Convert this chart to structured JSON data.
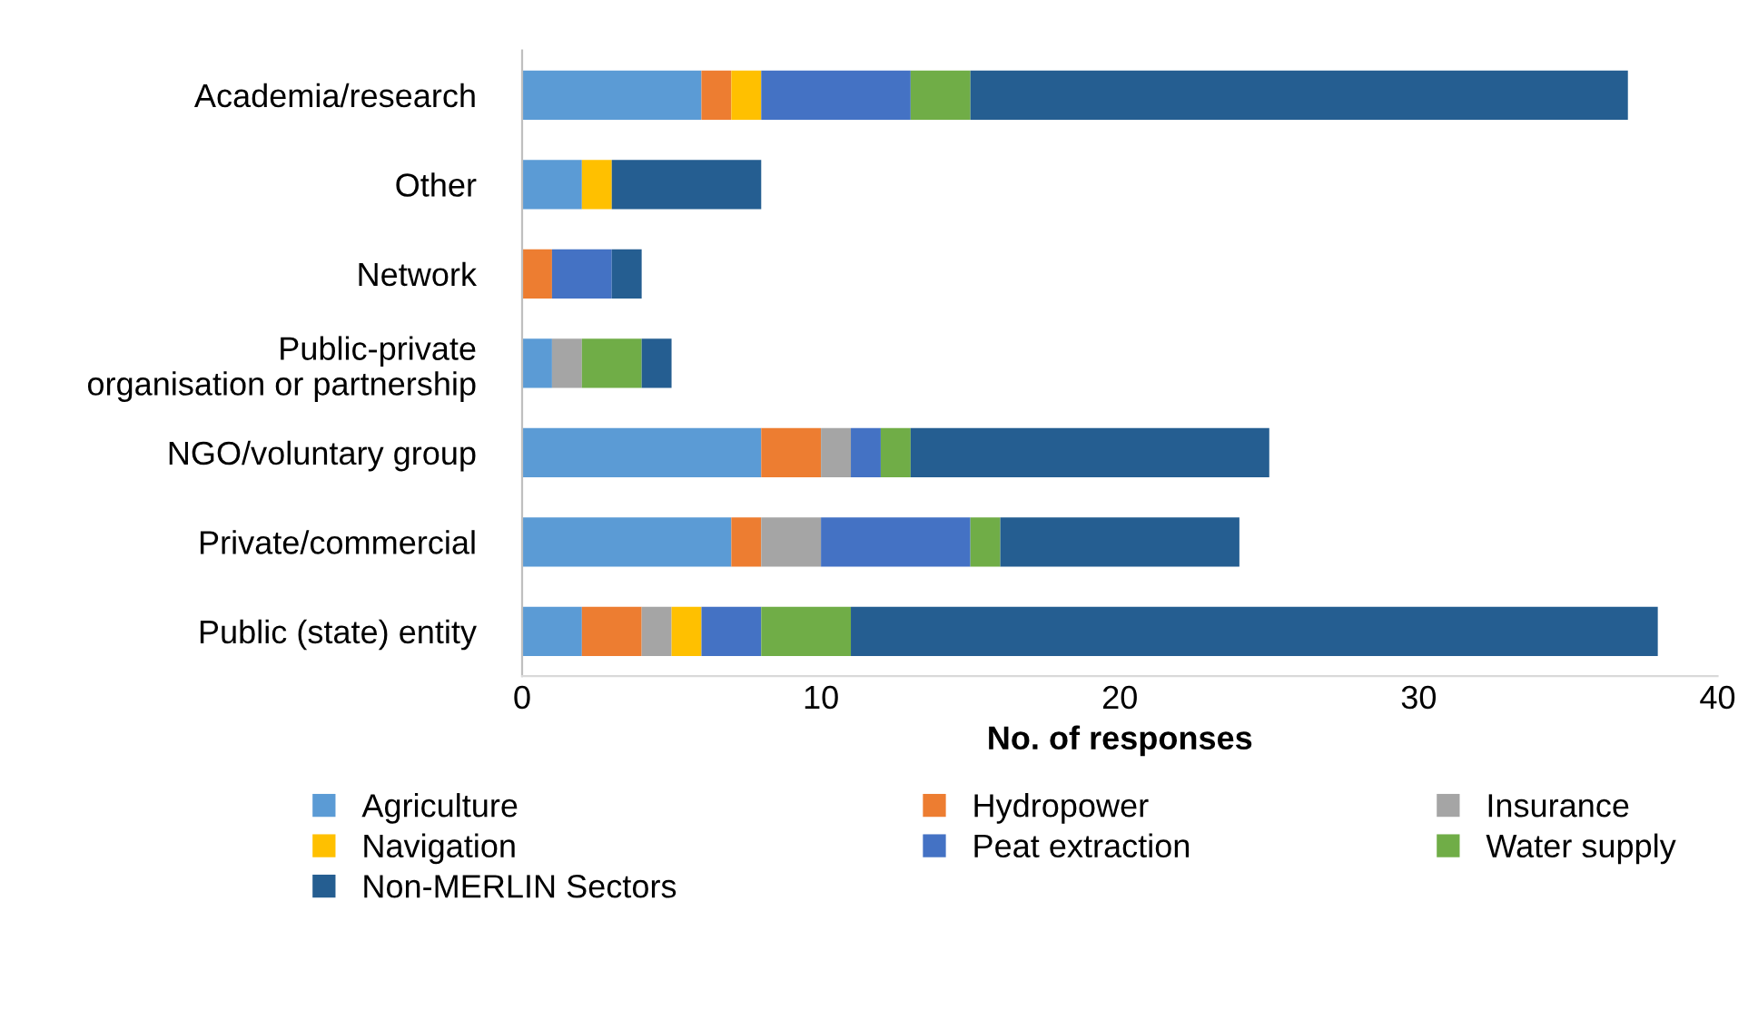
{
  "chart_data": {
    "type": "bar",
    "orientation": "horizontal",
    "stacked": true,
    "xlabel": "No. of responses",
    "categories": [
      "Academia/research",
      "Other",
      "Network",
      "Public-private\norganisation or partnership",
      "NGO/voluntary group",
      "Private/commercial",
      "Public (state) entity"
    ],
    "series": [
      {
        "name": "Agriculture",
        "color": "#5b9bd5",
        "values": [
          6,
          2,
          0,
          1,
          8,
          7,
          2
        ]
      },
      {
        "name": "Hydropower",
        "color": "#ed7d31",
        "values": [
          1,
          0,
          1,
          0,
          2,
          1,
          2
        ]
      },
      {
        "name": "Insurance",
        "color": "#a5a5a5",
        "values": [
          0,
          0,
          0,
          1,
          1,
          2,
          1
        ]
      },
      {
        "name": "Navigation",
        "color": "#ffc000",
        "values": [
          1,
          1,
          0,
          0,
          0,
          0,
          1
        ]
      },
      {
        "name": "Peat extraction",
        "color": "#4472c4",
        "values": [
          5,
          0,
          2,
          0,
          1,
          5,
          2
        ]
      },
      {
        "name": "Water supply",
        "color": "#70ad47",
        "values": [
          2,
          0,
          0,
          2,
          1,
          1,
          3
        ]
      },
      {
        "name": "Non-MERLIN Sectors",
        "color": "#255e91",
        "values": [
          22,
          5,
          1,
          1,
          12,
          8,
          27
        ]
      }
    ],
    "xlim": [
      0,
      40
    ],
    "xticks": [
      0,
      10,
      20,
      30,
      40
    ],
    "grid": false,
    "legend": "bottom"
  }
}
